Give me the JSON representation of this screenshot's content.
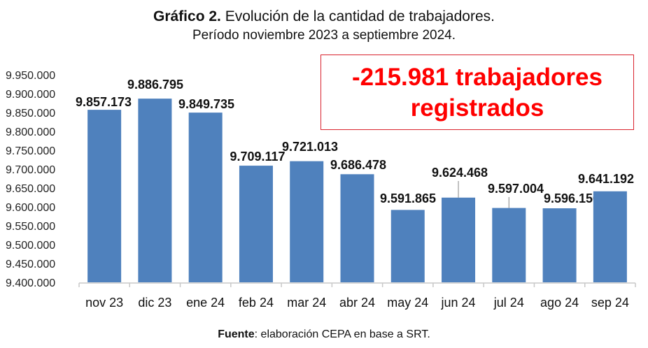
{
  "title": {
    "bold": "Gráfico 2.",
    "rest": " Evolución de la cantidad de trabajadores.",
    "subtitle": "Período noviembre 2023 a septiembre 2024."
  },
  "annotation": {
    "line1": "-215.981 trabajadores",
    "line2": "registrados",
    "color": "#ff0000"
  },
  "source": {
    "bold": "Fuente",
    "rest": ": elaboración CEPA en base a SRT."
  },
  "chart_data": {
    "type": "bar",
    "categories": [
      "nov 23",
      "dic 23",
      "ene 24",
      "feb 24",
      "mar 24",
      "abr 24",
      "may 24",
      "jun 24",
      "jul 24",
      "ago 24",
      "sep 24"
    ],
    "values": [
      9857173,
      9886795,
      9849735,
      9709117,
      9721013,
      9686478,
      9591865,
      9624468,
      9597004,
      9596156,
      9641192
    ],
    "data_labels": [
      "9.857.173",
      "9.886.795",
      "9.849.735",
      "9.709.117",
      "9.721.013",
      "9.686.478",
      "9.591.865",
      "9.624.468",
      "9.597.004",
      "9.596.156",
      "9.641.192"
    ],
    "ylim": [
      9400000,
      9950000
    ],
    "yticks": [
      "9.400.000",
      "9.450.000",
      "9.500.000",
      "9.550.000",
      "9.600.000",
      "9.650.000",
      "9.700.000",
      "9.750.000",
      "9.800.000",
      "9.850.000",
      "9.900.000",
      "9.950.000"
    ],
    "bar_color": "#4f81bd",
    "grid": false
  }
}
